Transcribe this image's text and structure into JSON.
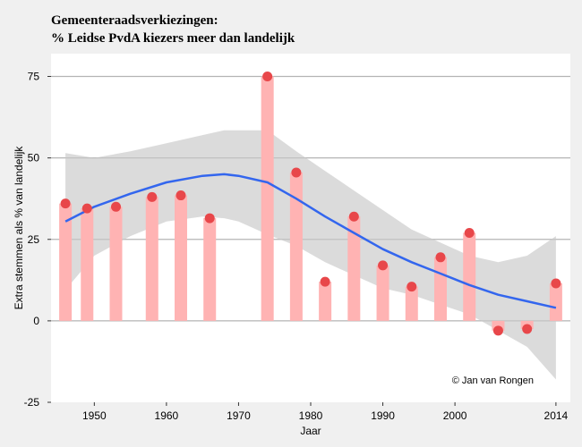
{
  "chart_data": {
    "type": "bar",
    "title": "Gemeenteraadsverkiezingen:",
    "subtitle": "% Leidse PvdA kiezers meer dan landelijk",
    "xlabel": "Jaar",
    "ylabel": "Extra stemmen als % van landelijk",
    "xlim": [
      1944,
      2016
    ],
    "ylim": [
      -25,
      82
    ],
    "x_ticks": [
      1950,
      1960,
      1970,
      1980,
      1990,
      2000,
      2014
    ],
    "y_ticks": [
      -25,
      0,
      25,
      50,
      75
    ],
    "grid": "horizontal",
    "annotation": "© Jan van Rongen",
    "x": [
      1946,
      1949,
      1953,
      1958,
      1962,
      1966,
      1974,
      1978,
      1982,
      1986,
      1990,
      1994,
      1998,
      2002,
      2006,
      2010,
      2014
    ],
    "values": [
      36,
      34.5,
      35,
      38,
      38.5,
      31.5,
      75,
      45.5,
      12,
      32,
      17,
      10.5,
      19.5,
      27,
      -3,
      -2.5,
      11.5
    ],
    "smooth": {
      "x": [
        1946,
        1950,
        1955,
        1960,
        1965,
        1968,
        1970,
        1974,
        1978,
        1982,
        1986,
        1990,
        1994,
        1998,
        2002,
        2006,
        2010,
        2014
      ],
      "y": [
        30.5,
        35,
        39,
        42.5,
        44.5,
        45,
        44.5,
        42.5,
        37.5,
        32,
        27,
        22,
        18,
        14.5,
        11,
        8,
        6,
        4
      ],
      "upper": [
        51.5,
        50,
        52,
        54.5,
        57,
        58.5,
        58.5,
        58.5,
        52,
        46,
        40,
        34,
        28,
        24,
        20,
        18,
        20,
        26
      ],
      "lower": [
        9.5,
        20,
        26,
        30.5,
        32,
        31.5,
        30.5,
        26.5,
        23,
        18,
        14,
        10,
        8,
        5,
        2,
        -3,
        -8,
        -18
      ]
    },
    "colors": {
      "bar": "#ffb3b3",
      "point": "#e8474a",
      "line": "#3366ee",
      "ribbon": "#c8c8c8",
      "panel": "#ffffff",
      "grid": "#b4b4b4",
      "background": "#f0f0f0"
    }
  }
}
